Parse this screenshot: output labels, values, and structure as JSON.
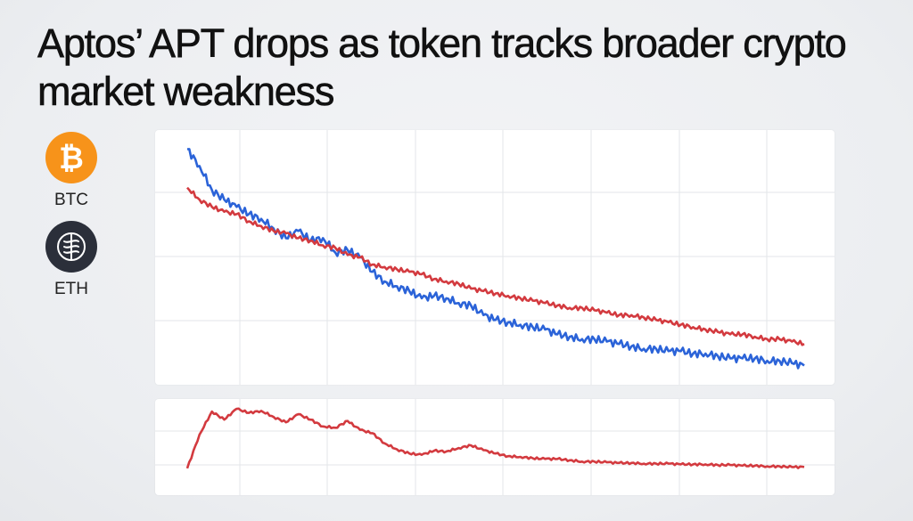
{
  "headline": "Aptos’ APT drops as token tracks broader crypto market weakness",
  "legend": [
    {
      "label": "BTC",
      "icon": "bitcoin-icon",
      "color": "#f7931a"
    },
    {
      "label": "ETH",
      "icon": "ethereum-icon",
      "color": "#2b2f3a"
    }
  ],
  "chart_data": [
    {
      "type": "line",
      "title": "",
      "xlabel": "",
      "ylabel": "",
      "grid": true,
      "x": [
        0,
        2,
        4,
        6,
        8,
        10,
        12,
        14,
        16,
        18,
        20,
        22,
        24,
        26,
        28,
        30,
        32,
        34,
        36,
        38,
        40,
        42,
        44,
        46,
        48,
        50,
        52,
        54,
        56,
        58,
        60,
        62,
        64,
        66,
        68,
        70,
        72,
        74,
        76,
        78,
        80,
        82,
        84,
        86,
        88,
        90,
        92,
        94,
        96,
        98,
        100
      ],
      "ylim": [
        0,
        100
      ],
      "series": [
        {
          "color": "#2b63d8",
          "values": [
            95,
            88,
            78,
            74,
            71,
            68,
            66,
            62,
            58,
            61,
            57,
            58,
            52,
            53,
            50,
            44,
            40,
            38,
            36,
            33,
            34,
            33,
            31,
            30,
            26,
            24,
            23,
            22,
            21,
            20,
            18,
            17,
            16,
            16,
            15,
            14,
            13,
            12,
            12,
            11,
            11,
            10,
            10,
            9,
            8,
            8,
            8,
            7,
            7,
            6,
            5
          ]
        },
        {
          "color": "#d33a3f",
          "values": [
            79,
            74,
            71,
            69,
            68,
            65,
            63,
            61,
            60,
            58,
            57,
            55,
            54,
            51,
            50,
            47,
            46,
            45,
            44,
            43,
            41,
            40,
            39,
            37,
            36,
            35,
            34,
            33,
            32,
            31,
            30,
            29,
            29,
            28,
            27,
            26,
            26,
            25,
            24,
            23,
            22,
            21,
            20,
            19,
            18,
            18,
            17,
            16,
            16,
            15,
            14
          ]
        }
      ]
    },
    {
      "type": "line",
      "title": "",
      "xlabel": "",
      "ylabel": "",
      "grid": true,
      "x": [
        0,
        2,
        4,
        6,
        8,
        10,
        12,
        14,
        16,
        18,
        20,
        22,
        24,
        26,
        28,
        30,
        32,
        34,
        36,
        38,
        40,
        42,
        44,
        46,
        48,
        50,
        52,
        54,
        56,
        58,
        60,
        62,
        64,
        66,
        68,
        70,
        72,
        74,
        76,
        78,
        80,
        82,
        84,
        86,
        88,
        90,
        92,
        94,
        96,
        98,
        100
      ],
      "ylim": [
        0,
        100
      ],
      "series": [
        {
          "color": "#d33a3f",
          "values": [
            8,
            58,
            92,
            80,
            96,
            90,
            93,
            84,
            76,
            88,
            80,
            70,
            68,
            78,
            65,
            60,
            45,
            36,
            30,
            28,
            34,
            33,
            38,
            42,
            35,
            30,
            26,
            25,
            23,
            22,
            22,
            20,
            18,
            18,
            17,
            16,
            16,
            15,
            15,
            15,
            14,
            14,
            14,
            13,
            13,
            12,
            12,
            11,
            11,
            10,
            10
          ]
        }
      ]
    }
  ]
}
